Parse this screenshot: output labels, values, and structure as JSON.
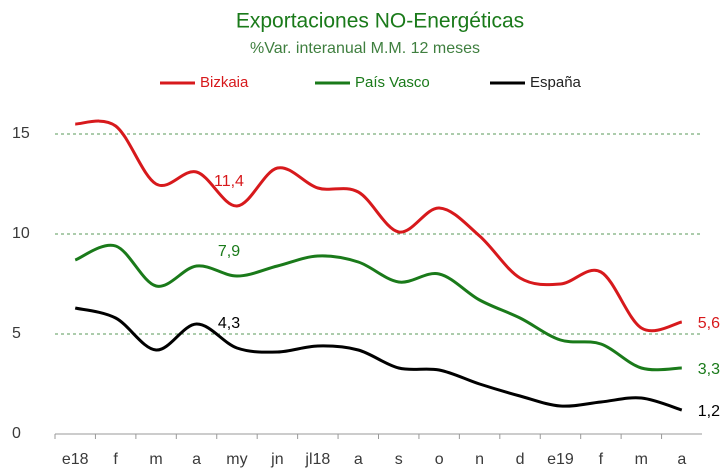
{
  "chart_data": {
    "type": "line",
    "title": "Exportaciones NO-Energéticas",
    "subtitle": "%Var. interanual M.M. 12 meses",
    "categories": [
      "e18",
      "f",
      "m",
      "a",
      "my",
      "jn",
      "jl18",
      "a",
      "s",
      "o",
      "n",
      "d",
      "e19",
      "f",
      "m",
      "a"
    ],
    "series": [
      {
        "name": "Bizkaia",
        "color": "#d7191c",
        "values": [
          15.5,
          15.4,
          12.5,
          13.1,
          11.4,
          13.3,
          12.3,
          12.1,
          10.1,
          11.3,
          9.9,
          7.8,
          7.5,
          8.1,
          5.3,
          5.6
        ],
        "value_labels": [
          null,
          null,
          null,
          null,
          "11,4",
          null,
          null,
          null,
          null,
          null,
          null,
          null,
          null,
          null,
          null,
          "5,6"
        ]
      },
      {
        "name": "País Vasco",
        "color": "#1a7a1a",
        "values": [
          8.7,
          9.4,
          7.4,
          8.4,
          7.9,
          8.4,
          8.9,
          8.6,
          7.6,
          8.0,
          6.7,
          5.8,
          4.7,
          4.5,
          3.3,
          3.3
        ],
        "value_labels": [
          null,
          null,
          null,
          null,
          "7,9",
          null,
          null,
          null,
          null,
          null,
          null,
          null,
          null,
          null,
          null,
          "3,3"
        ]
      },
      {
        "name": "España",
        "color": "#000000",
        "values": [
          6.3,
          5.8,
          4.2,
          5.5,
          4.3,
          4.1,
          4.4,
          4.2,
          3.3,
          3.2,
          2.5,
          1.9,
          1.4,
          1.6,
          1.8,
          1.2
        ],
        "value_labels": [
          null,
          null,
          null,
          null,
          "4,3",
          null,
          null,
          null,
          null,
          null,
          null,
          null,
          null,
          null,
          null,
          "1,2"
        ]
      }
    ],
    "ylim": [
      0,
      17
    ],
    "yticks": [
      0,
      5,
      10,
      15
    ],
    "grid": true,
    "legend": "top"
  }
}
